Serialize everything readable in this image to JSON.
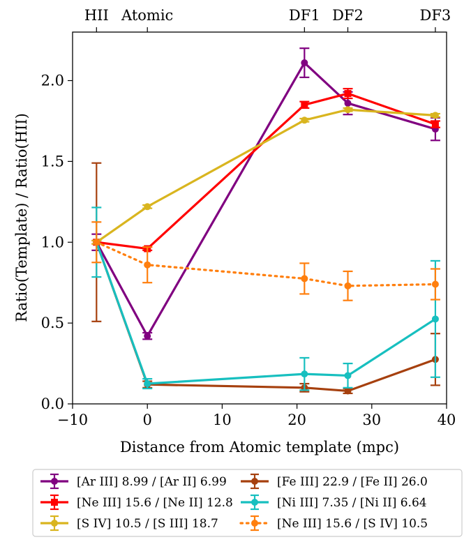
{
  "chart_data": {
    "type": "line",
    "title": "",
    "xlabel": "Distance from Atomic template (mpc)",
    "ylabel": "Ratio(Template) / Ratio(HII)",
    "xlim": [
      -10,
      40
    ],
    "ylim": [
      0,
      2.3
    ],
    "x_ticks": [
      -10,
      0,
      10,
      20,
      30,
      40
    ],
    "x_tick_labels": [
      "−10",
      "0",
      "10",
      "20",
      "30",
      "40"
    ],
    "y_ticks": [
      0.0,
      0.5,
      1.0,
      1.5,
      2.0
    ],
    "y_tick_labels": [
      "0.0",
      "0.5",
      "1.0",
      "1.5",
      "2.0"
    ],
    "top_axis": {
      "ticks": [
        -6.8,
        0,
        21,
        26.8,
        38.5
      ],
      "labels": [
        "HII",
        "Atomic",
        "DF1",
        "DF2",
        "DF3"
      ]
    },
    "grid": false,
    "legend_position": "bottom",
    "x": [
      -6.8,
      0,
      21,
      26.8,
      38.5
    ],
    "series": [
      {
        "name": "[Ar III] 8.99 / [Ar II] 6.99",
        "color": "#800080",
        "style": "solid",
        "marker": "circle",
        "values": [
          1.0,
          0.42,
          2.11,
          1.86,
          1.7
        ],
        "errors": [
          0.05,
          0.02,
          0.09,
          0.07,
          0.07
        ]
      },
      {
        "name": "[Ne III] 15.6 / [Ne II] 12.8",
        "color": "#ff0000",
        "style": "solid",
        "marker": "square",
        "values": [
          1.0,
          0.96,
          1.85,
          1.92,
          1.73
        ],
        "errors": [
          0.01,
          0.01,
          0.02,
          0.03,
          0.02
        ]
      },
      {
        "name": "[S IV] 10.5 / [S III] 18.7",
        "color": "#d9b51f",
        "style": "solid",
        "marker": "circle",
        "values": [
          1.0,
          1.22,
          1.755,
          1.82,
          1.785
        ],
        "errors": [
          0.01,
          0.01,
          0.01,
          0.01,
          0.01
        ]
      },
      {
        "name": "[Fe III] 22.9 / [Fe II] 26.0",
        "color": "#a6400e",
        "style": "solid",
        "marker": "circle",
        "values": [
          1.0,
          0.12,
          0.1,
          0.08,
          0.275
        ],
        "errors": [
          0.49,
          0.02,
          0.025,
          0.015,
          0.16
        ]
      },
      {
        "name": "[Ni III] 7.35 / [Ni II] 6.64",
        "color": "#17bfbf",
        "style": "solid",
        "marker": "circle",
        "values": [
          1.0,
          0.125,
          0.185,
          0.175,
          0.525
        ],
        "errors": [
          0.215,
          0.03,
          0.1,
          0.075,
          0.36
        ]
      },
      {
        "name": "[Ne III] 15.6 / [S IV] 10.5",
        "color": "#ff7f0e",
        "style": "dotted",
        "marker": "circle",
        "values": [
          1.0,
          0.86,
          0.775,
          0.73,
          0.74
        ],
        "errors": [
          0.125,
          0.11,
          0.095,
          0.09,
          0.095
        ]
      }
    ]
  }
}
